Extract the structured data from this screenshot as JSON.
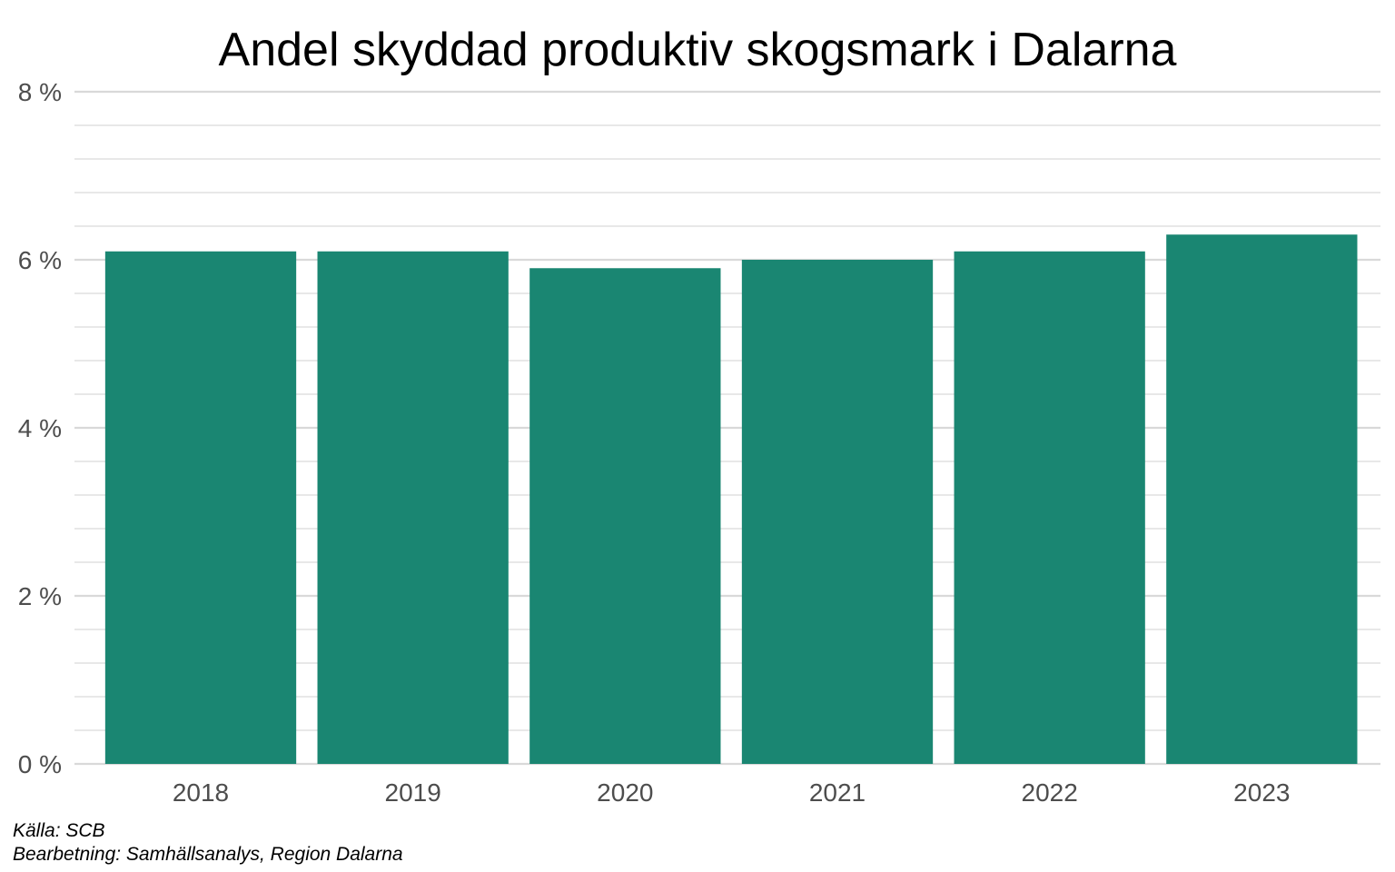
{
  "chart_data": {
    "type": "bar",
    "title": "Andel skyddad produktiv skogsmark i Dalarna",
    "xlabel": "",
    "ylabel": "",
    "categories": [
      "2018",
      "2019",
      "2020",
      "2021",
      "2022",
      "2023"
    ],
    "values": [
      6.1,
      6.1,
      5.9,
      6.0,
      6.1,
      6.3
    ],
    "unit": "%",
    "ylim": [
      0,
      8
    ],
    "y_ticks": [
      0,
      2,
      4,
      6,
      8
    ],
    "y_tick_labels": [
      "0 %",
      "2 %",
      "4 %",
      "6 %",
      "8 %"
    ],
    "minor_gridline_step": 0.4,
    "grid": true,
    "legend": "none",
    "bar_color": "#1a8672",
    "gridline_color": "#d9d9d9"
  },
  "caption": {
    "source": "Källa: SCB",
    "processing": "Bearbetning: Samhällsanalys, Region Dalarna"
  }
}
